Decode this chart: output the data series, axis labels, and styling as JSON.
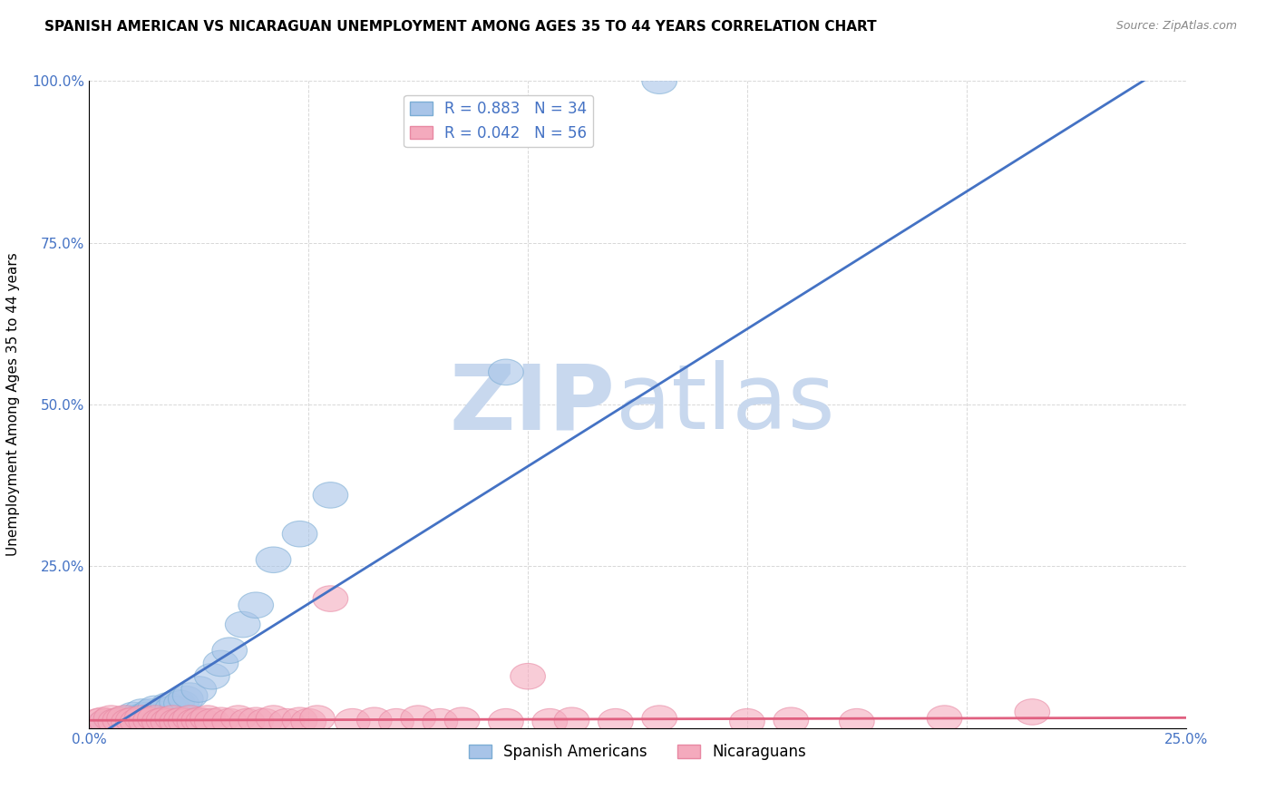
{
  "title": "SPANISH AMERICAN VS NICARAGUAN UNEMPLOYMENT AMONG AGES 35 TO 44 YEARS CORRELATION CHART",
  "source": "Source: ZipAtlas.com",
  "ylabel_label": "Unemployment Among Ages 35 to 44 years",
  "xmin": 0.0,
  "xmax": 0.25,
  "ymin": 0.0,
  "ymax": 1.0,
  "blue_R": 0.883,
  "blue_N": 34,
  "pink_R": 0.042,
  "pink_N": 56,
  "blue_color": "#A8C4E8",
  "pink_color": "#F4AABD",
  "blue_edge_color": "#7BADD4",
  "pink_edge_color": "#E888A3",
  "blue_line_color": "#4472C4",
  "pink_line_color": "#E06080",
  "watermark_zip": "ZIP",
  "watermark_atlas": "atlas",
  "watermark_color": "#C8D8EE",
  "legend_label_blue": "Spanish Americans",
  "legend_label_pink": "Nicaraguans",
  "blue_scatter_x": [
    0.003,
    0.005,
    0.006,
    0.007,
    0.008,
    0.009,
    0.01,
    0.01,
    0.011,
    0.012,
    0.012,
    0.013,
    0.014,
    0.015,
    0.015,
    0.016,
    0.017,
    0.018,
    0.019,
    0.02,
    0.021,
    0.022,
    0.023,
    0.025,
    0.028,
    0.03,
    0.032,
    0.035,
    0.038,
    0.042,
    0.048,
    0.055,
    0.095,
    0.13
  ],
  "blue_scatter_y": [
    0.005,
    0.008,
    0.01,
    0.012,
    0.01,
    0.015,
    0.012,
    0.02,
    0.015,
    0.018,
    0.025,
    0.02,
    0.025,
    0.018,
    0.03,
    0.022,
    0.028,
    0.035,
    0.03,
    0.04,
    0.038,
    0.045,
    0.05,
    0.06,
    0.08,
    0.1,
    0.12,
    0.16,
    0.19,
    0.26,
    0.3,
    0.36,
    0.55,
    1.0
  ],
  "pink_scatter_x": [
    0.002,
    0.003,
    0.004,
    0.005,
    0.006,
    0.007,
    0.008,
    0.009,
    0.01,
    0.011,
    0.012,
    0.013,
    0.014,
    0.015,
    0.016,
    0.017,
    0.018,
    0.019,
    0.02,
    0.021,
    0.022,
    0.023,
    0.024,
    0.025,
    0.026,
    0.027,
    0.028,
    0.03,
    0.032,
    0.034,
    0.036,
    0.038,
    0.04,
    0.042,
    0.045,
    0.048,
    0.05,
    0.052,
    0.055,
    0.06,
    0.065,
    0.07,
    0.075,
    0.08,
    0.085,
    0.095,
    0.1,
    0.105,
    0.11,
    0.12,
    0.13,
    0.15,
    0.16,
    0.175,
    0.195,
    0.215
  ],
  "pink_scatter_y": [
    0.01,
    0.012,
    0.01,
    0.015,
    0.01,
    0.012,
    0.015,
    0.01,
    0.012,
    0.01,
    0.015,
    0.01,
    0.012,
    0.015,
    0.01,
    0.012,
    0.01,
    0.015,
    0.01,
    0.012,
    0.01,
    0.015,
    0.01,
    0.012,
    0.01,
    0.015,
    0.01,
    0.012,
    0.01,
    0.015,
    0.01,
    0.012,
    0.01,
    0.015,
    0.01,
    0.012,
    0.01,
    0.015,
    0.2,
    0.01,
    0.012,
    0.01,
    0.015,
    0.01,
    0.012,
    0.01,
    0.08,
    0.01,
    0.012,
    0.01,
    0.015,
    0.01,
    0.012,
    0.01,
    0.015,
    0.025
  ],
  "blue_line_x0": 0.0,
  "blue_line_y0": -0.02,
  "blue_line_x1": 0.245,
  "blue_line_y1": 1.02,
  "pink_line_x0": 0.0,
  "pink_line_y0": 0.012,
  "pink_line_x1": 0.25,
  "pink_line_y1": 0.016,
  "grid_color": "#C8C8C8",
  "background_color": "#FFFFFF",
  "tick_color": "#4472C4",
  "title_fontsize": 11,
  "axis_fontsize": 11,
  "legend_fontsize": 12
}
